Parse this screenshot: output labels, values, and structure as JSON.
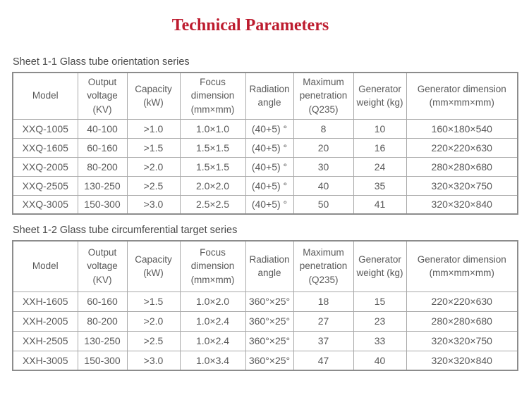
{
  "page": {
    "title": "Technical Parameters",
    "colors": {
      "title_red": "#bd1b2e",
      "table_border": "#8c8c8c",
      "grid_line": "#a9a9a9",
      "table_text": "#595959"
    }
  },
  "sheets": [
    {
      "caption": "Sheet 1-1 Glass tube orientation series",
      "headers": [
        "Model",
        "Output voltage (KV)",
        "Capacity (kW)",
        "Focus dimension (mm×mm)",
        "Radiation angle",
        "Maximum penetration (Q235)",
        "Generator weight (kg)",
        "Generator dimension (mm×mm×mm)"
      ],
      "rows": [
        [
          "XXQ-1005",
          "40-100",
          ">1.0",
          "1.0×1.0",
          "(40+5) °",
          "8",
          "10",
          "160×180×540"
        ],
        [
          "XXQ-1605",
          "60-160",
          ">1.5",
          "1.5×1.5",
          "(40+5) °",
          "20",
          "16",
          "220×220×630"
        ],
        [
          "XXQ-2005",
          "80-200",
          ">2.0",
          "1.5×1.5",
          "(40+5) °",
          "30",
          "24",
          "280×280×680"
        ],
        [
          "XXQ-2505",
          "130-250",
          ">2.5",
          "2.0×2.0",
          "(40+5) °",
          "40",
          "35",
          "320×320×750"
        ],
        [
          "XXQ-3005",
          "150-300",
          ">3.0",
          "2.5×2.5",
          "(40+5) °",
          "50",
          "41",
          "320×320×840"
        ]
      ]
    },
    {
      "caption": "Sheet 1-2 Glass tube circumferential target series",
      "headers": [
        "Model",
        "Output voltage (KV)",
        "Capacity (kW)",
        "Focus dimension (mm×mm)",
        "Radiation angle",
        "Maximum penetration (Q235)",
        "Generator weight (kg)",
        "Generator dimension (mm×mm×mm)"
      ],
      "rows": [
        [
          "XXH-1605",
          "60-160",
          ">1.5",
          "1.0×2.0",
          "360°×25°",
          "18",
          "15",
          "220×220×630"
        ],
        [
          "XXH-2005",
          "80-200",
          ">2.0",
          "1.0×2.4",
          "360°×25°",
          "27",
          "23",
          "280×280×680"
        ],
        [
          "XXH-2505",
          "130-250",
          ">2.5",
          "1.0×2.4",
          "360°×25°",
          "37",
          "33",
          "320×320×750"
        ],
        [
          "XXH-3005",
          "150-300",
          ">3.0",
          "1.0×3.4",
          "360°×25°",
          "47",
          "40",
          "320×320×840"
        ]
      ]
    }
  ]
}
